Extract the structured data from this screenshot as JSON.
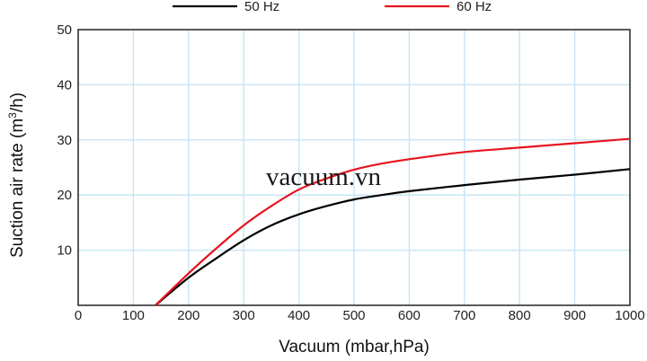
{
  "chart_data": {
    "type": "line",
    "title": "",
    "xlabel": "Vacuum (mbar,hPa)",
    "ylabel_main": "Suction air rate (m",
    "ylabel_sup": "3",
    "ylabel_end": "/h)",
    "xlim": [
      0,
      1000
    ],
    "ylim": [
      0,
      50
    ],
    "xticks": [
      0,
      100,
      200,
      300,
      400,
      500,
      600,
      700,
      800,
      900,
      1000
    ],
    "yticks": [
      10,
      20,
      30,
      40,
      50
    ],
    "grid": true,
    "legend_position": "top",
    "watermark": "vacuum.vn",
    "series": [
      {
        "name": "50 Hz",
        "color": "#000000",
        "x": [
          140,
          200,
          250,
          300,
          350,
          400,
          450,
          500,
          550,
          600,
          700,
          800,
          900,
          1000
        ],
        "y": [
          0,
          5,
          8.5,
          11.8,
          14.5,
          16.5,
          18,
          19.2,
          20,
          20.7,
          21.8,
          22.8,
          23.7,
          24.7
        ]
      },
      {
        "name": "60 Hz",
        "color": "#e8141e",
        "x": [
          140,
          200,
          250,
          300,
          350,
          400,
          450,
          500,
          550,
          600,
          700,
          800,
          900,
          1000
        ],
        "y": [
          0,
          5.8,
          10.3,
          14.5,
          18,
          21,
          23,
          24.6,
          25.7,
          26.5,
          27.8,
          28.6,
          29.4,
          30.2
        ]
      }
    ]
  }
}
